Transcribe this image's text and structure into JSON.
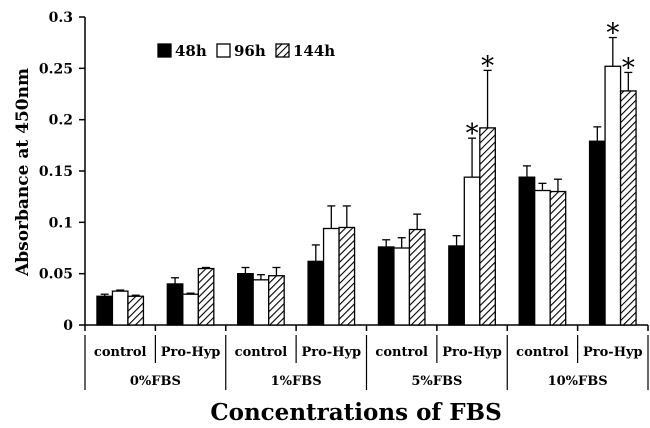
{
  "colors": {
    "s48": "#000000",
    "s96": "#ffffff",
    "s144": "hatch"
  },
  "chart_data": {
    "type": "bar",
    "ylabel": "Absorbance at 450nm",
    "xlabel": "Concentrations of FBS",
    "ylim": [
      0,
      0.3
    ],
    "yticks": [
      "0",
      "0.05",
      "0.1",
      "0.15",
      "0.2",
      "0.25",
      "0.3"
    ],
    "grid": false,
    "legend_position": "top-left",
    "groups": [
      "0%FBS",
      "1%FBS",
      "5%FBS",
      "10%FBS"
    ],
    "subcategories": [
      "control",
      "Pro-Hyp"
    ],
    "categories": [
      "control",
      "Pro-Hyp",
      "control",
      "Pro-Hyp",
      "control",
      "Pro-Hyp",
      "control",
      "Pro-Hyp"
    ],
    "series": [
      {
        "name": "48h",
        "values": [
          0.028,
          0.04,
          0.05,
          0.062,
          0.076,
          0.077,
          0.144,
          0.179
        ],
        "errors": [
          0.002,
          0.006,
          0.006,
          0.016,
          0.007,
          0.01,
          0.011,
          0.014
        ]
      },
      {
        "name": "96h",
        "values": [
          0.033,
          0.03,
          0.044,
          0.094,
          0.075,
          0.144,
          0.131,
          0.252
        ],
        "errors": [
          0.001,
          0.001,
          0.005,
          0.022,
          0.01,
          0.038,
          0.007,
          0.028
        ]
      },
      {
        "name": "144h",
        "values": [
          0.028,
          0.055,
          0.048,
          0.095,
          0.093,
          0.192,
          0.13,
          0.228
        ],
        "errors": [
          0.001,
          0.001,
          0.008,
          0.021,
          0.015,
          0.056,
          0.012,
          0.018
        ]
      }
    ],
    "significance": [
      {
        "series": "96h",
        "category_index": 5,
        "label": "*"
      },
      {
        "series": "144h",
        "category_index": 5,
        "label": "*"
      },
      {
        "series": "96h",
        "category_index": 7,
        "label": "*"
      },
      {
        "series": "144h",
        "category_index": 7,
        "label": "*"
      }
    ]
  }
}
